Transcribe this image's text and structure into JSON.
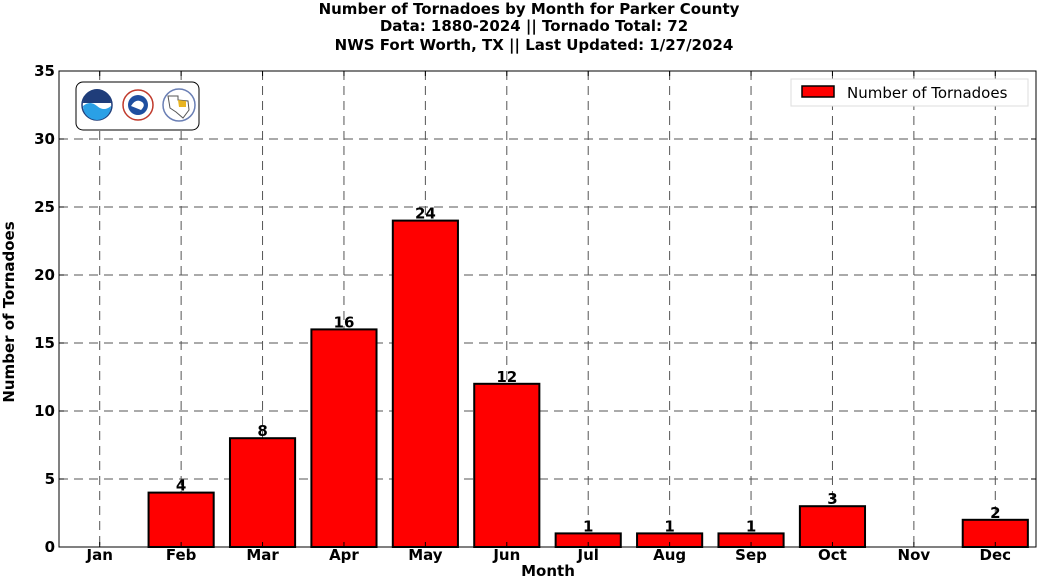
{
  "title_lines": [
    "Number of Tornadoes by Month for Parker County",
    "Data: 1880-2024 || Tornado Total: 72",
    "NWS Fort Worth, TX || Last Updated: 1/27/2024"
  ],
  "chart_data": {
    "type": "bar",
    "categories": [
      "Jan",
      "Feb",
      "Mar",
      "Apr",
      "May",
      "Jun",
      "Jul",
      "Aug",
      "Sep",
      "Oct",
      "Nov",
      "Dec"
    ],
    "series": [
      {
        "name": "Number of Tornadoes",
        "values": [
          0,
          4,
          8,
          16,
          24,
          12,
          1,
          1,
          1,
          3,
          0,
          2
        ]
      }
    ],
    "data_labels": [
      "",
      "4",
      "8",
      "16",
      "24",
      "12",
      "1",
      "1",
      "1",
      "3",
      "",
      "2"
    ],
    "xlabel": "Month",
    "ylabel": "Number of Tornadoes",
    "ylim": [
      0,
      35
    ],
    "yticks": [
      0,
      5,
      10,
      15,
      20,
      25,
      30,
      35
    ],
    "ytick_labels": [
      "0",
      "5",
      "10",
      "15",
      "20",
      "25",
      "30",
      "35"
    ],
    "grid": true,
    "legend_position": "top-right",
    "bar_color": "#ff0000",
    "edge_color": "#000000"
  },
  "logos": [
    "noaa-logo",
    "nws-logo",
    "nws-fort-worth-logo"
  ]
}
